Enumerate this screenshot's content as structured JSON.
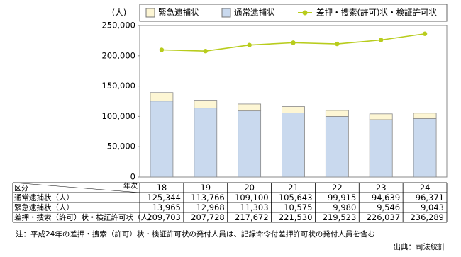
{
  "chart_data": {
    "type": "bar",
    "y_axis_label": "(人)",
    "categories": [
      "18",
      "19",
      "20",
      "21",
      "22",
      "23",
      "24"
    ],
    "series": [
      {
        "name": "緊急逮捕状",
        "color": "#fdf6d4",
        "values": [
          13965,
          12968,
          11303,
          10575,
          9980,
          9546,
          9043
        ],
        "value_labels": [
          "13,965",
          "12,968",
          "11,303",
          "10,575",
          "9,980",
          "9,546",
          "9,043"
        ]
      },
      {
        "name": "通常逮捕状",
        "color": "#c9d9ee",
        "values": [
          125344,
          113766,
          109100,
          105643,
          99915,
          94639,
          96371
        ],
        "value_labels": [
          "125,344",
          "113,766",
          "109,100",
          "105,643",
          "99,915",
          "94,639",
          "96,371"
        ]
      },
      {
        "name": "差押・捜索(許可)状・検証許可状",
        "color": "#b8cc1c",
        "type": "line",
        "values": [
          209703,
          207728,
          217672,
          221530,
          219523,
          226037,
          236289
        ],
        "value_labels": [
          "209,703",
          "207,728",
          "217,672",
          "221,530",
          "219,523",
          "226,037",
          "236,289"
        ]
      }
    ],
    "ylim": [
      0,
      250000
    ],
    "yticks": [
      0,
      {
        "value": 50000,
        "label": "50,000"
      },
      {
        "value": 100000,
        "label": "100,000"
      },
      {
        "value": 150000,
        "label": "150,000"
      },
      {
        "value": 200000,
        "label": "200,000"
      },
      {
        "value": 250000,
        "label": "250,000"
      }
    ],
    "grid": false,
    "table": {
      "corner_bottom": "区分",
      "corner_top": "年次",
      "row_labels": [
        "通常逮捕状（人）",
        "緊急逮捕状（人）",
        "差押・捜索（許可）状・検証許可状（人）"
      ]
    },
    "note": "注：平成24年の差押・捜索（許可）状・検証許可状の発付人員は、記録命令付差押許可状の発付人員を含む",
    "source": "出典：司法統計"
  }
}
